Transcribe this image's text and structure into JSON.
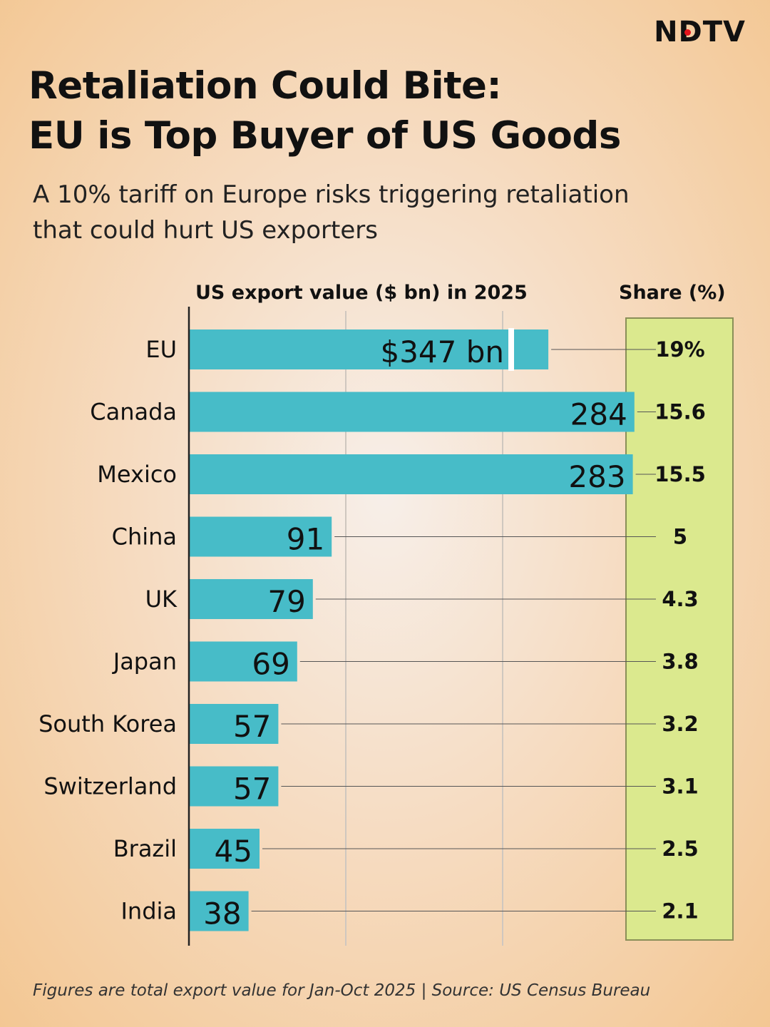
{
  "brand": {
    "logo_text": "NDTV",
    "dot_color": "#e3141c"
  },
  "title": {
    "line1": "Retaliation Could Bite:",
    "line2": "EU is Top Buyer of US Goods"
  },
  "subtitle": {
    "line1": "A 10% tariff on Europe risks triggering retaliation",
    "line2": "that could hurt US exporters"
  },
  "column_titles": {
    "values": "US export value ($ bn) in 2025",
    "share": "Share (%)"
  },
  "footnote": "Figures are total export value for Jan-Oct 2025 | Source: US Census Bureau",
  "colors": {
    "bar": "#47bcc8",
    "share_panel": "#dbe98e",
    "share_panel_border": "#8a8f58",
    "axis": "#222222",
    "grid": "#cfc7bf"
  },
  "chart_data": {
    "type": "bar",
    "orientation": "horizontal",
    "title": "US export value ($ bn) in 2025",
    "categories": [
      "EU",
      "Canada",
      "Mexico",
      "China",
      "UK",
      "Japan",
      "South Korea",
      "Switzerland",
      "Brazil",
      "India"
    ],
    "values": [
      347,
      284,
      283,
      91,
      79,
      69,
      57,
      57,
      45,
      38
    ],
    "value_labels": [
      "$347 bn",
      "284",
      "283",
      "91",
      "79",
      "69",
      "57",
      "57",
      "45",
      "38"
    ],
    "xlim": [
      0,
      347
    ],
    "axis_break": {
      "at": 310
    },
    "gridlines": [
      100,
      200
    ],
    "share": {
      "title": "Share (%)",
      "values": [
        19,
        15.6,
        15.5,
        5,
        4.3,
        3.8,
        3.2,
        3.1,
        2.5,
        2.1
      ],
      "labels": [
        "19%",
        "15.6",
        "15.5",
        "5",
        "4.3",
        "3.8",
        "3.2",
        "3.1",
        "2.5",
        "2.1"
      ]
    }
  }
}
